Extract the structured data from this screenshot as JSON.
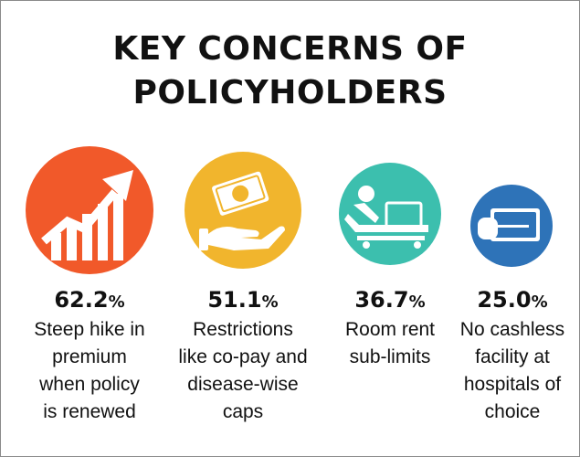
{
  "title": {
    "line1": "KEY CONCERNS OF",
    "line2": "POLICYHOLDERS"
  },
  "colors": {
    "orange": "#f1592a",
    "yellow": "#f1b52d",
    "teal": "#3cbfae",
    "blue": "#2e73b8"
  },
  "chart_data": {
    "type": "bar",
    "title": "KEY CONCERNS OF POLICYHOLDERS",
    "unit": "%",
    "categories": [
      "Steep hike in premium when policy is renewed",
      "Restrictions like co-pay and disease-wise caps",
      "Room rent sub-limits",
      "No cashless facility at hospitals of choice"
    ],
    "values": [
      62.2,
      51.1,
      36.7,
      25.0
    ],
    "icons": [
      "rising-chart-icon",
      "cash-in-hand-icon",
      "hospital-bed-icon",
      "card-in-hand-icon"
    ]
  },
  "items": [
    {
      "value": "62.2",
      "unit": "%",
      "lines": [
        "Steep hike in",
        "premium",
        "when policy",
        "is renewed"
      ]
    },
    {
      "value": "51.1",
      "unit": "%",
      "lines": [
        "Restrictions",
        "like co-pay and",
        "disease-wise",
        "caps"
      ]
    },
    {
      "value": "36.7",
      "unit": "%",
      "lines": [
        "Room rent",
        "sub-limits"
      ]
    },
    {
      "value": "25.0",
      "unit": "%",
      "lines": [
        "No cashless",
        "facility at",
        "hospitals of",
        "choice"
      ]
    }
  ]
}
